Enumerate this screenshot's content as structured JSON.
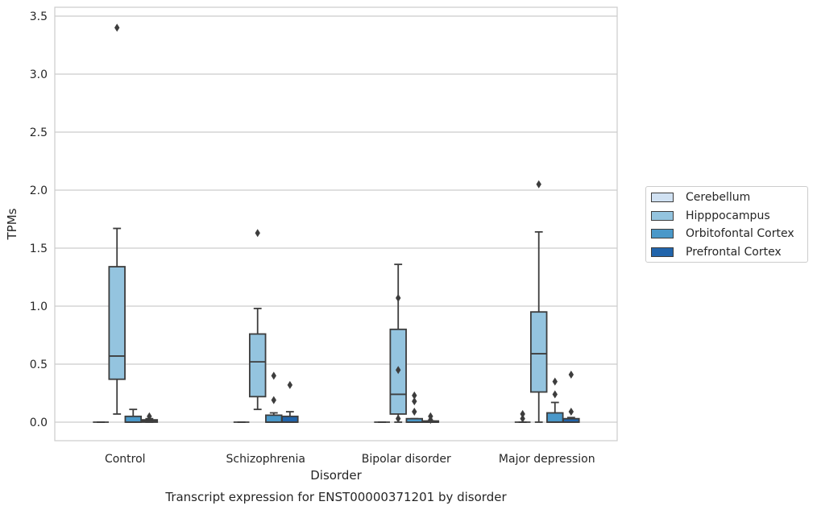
{
  "chart_data": {
    "type": "box",
    "title": "Transcript expression for ENST00000371201 by disorder",
    "xlabel": "Disorder",
    "ylabel": "TPMs",
    "ylim": [
      -0.17,
      3.57
    ],
    "yticks": [
      "0.0",
      "0.5",
      "1.0",
      "1.5",
      "2.0",
      "2.5",
      "3.0",
      "3.5"
    ],
    "categories": [
      "Control",
      "Schizophrenia",
      "Bipolar disorder",
      "Major depression"
    ],
    "grid": "horizontal",
    "legend_position": "right",
    "series": [
      {
        "name": "Cerebellum",
        "color": "#d0e1f2",
        "boxes": [
          {
            "q1": 0.0,
            "median": 0.0,
            "q3": 0.0,
            "whislo": 0.0,
            "whishi": 0.0,
            "fliers": []
          },
          {
            "q1": 0.0,
            "median": 0.0,
            "q3": 0.0,
            "whislo": 0.0,
            "whishi": 0.0,
            "fliers": []
          },
          {
            "q1": 0.0,
            "median": 0.0,
            "q3": 0.0,
            "whislo": 0.0,
            "whishi": 0.0,
            "fliers": []
          },
          {
            "q1": 0.0,
            "median": 0.0,
            "q3": 0.0,
            "whislo": 0.0,
            "whishi": 0.0,
            "fliers": [
              0.03,
              0.07
            ]
          }
        ]
      },
      {
        "name": "Hipppocampus",
        "color": "#94c4df",
        "boxes": [
          {
            "q1": 0.37,
            "median": 0.57,
            "q3": 1.34,
            "whislo": 0.07,
            "whishi": 1.67,
            "fliers": [
              3.4
            ]
          },
          {
            "q1": 0.22,
            "median": 0.52,
            "q3": 0.76,
            "whislo": 0.11,
            "whishi": 0.98,
            "fliers": [
              1.63
            ]
          },
          {
            "q1": 0.07,
            "median": 0.24,
            "q3": 0.8,
            "whislo": 0.0,
            "whishi": 1.36,
            "fliers": [
              0.45,
              1.07,
              0.03
            ]
          },
          {
            "q1": 0.26,
            "median": 0.59,
            "q3": 0.95,
            "whislo": 0.0,
            "whishi": 1.64,
            "fliers": [
              2.05
            ]
          }
        ]
      },
      {
        "name": "Orbitofontal Cortex",
        "color": "#4a98c9",
        "boxes": [
          {
            "q1": 0.0,
            "median": 0.0,
            "q3": 0.05,
            "whislo": 0.0,
            "whishi": 0.11,
            "fliers": []
          },
          {
            "q1": 0.0,
            "median": 0.0,
            "q3": 0.06,
            "whislo": 0.0,
            "whishi": 0.08,
            "fliers": [
              0.4,
              0.19
            ]
          },
          {
            "q1": 0.0,
            "median": 0.0,
            "q3": 0.03,
            "whislo": 0.0,
            "whishi": 0.03,
            "fliers": [
              0.23,
              0.18,
              0.09
            ]
          },
          {
            "q1": 0.0,
            "median": 0.0,
            "q3": 0.08,
            "whislo": 0.0,
            "whishi": 0.17,
            "fliers": [
              0.35,
              0.24
            ]
          }
        ]
      },
      {
        "name": "Prefrontal Cortex",
        "color": "#2164ab",
        "boxes": [
          {
            "q1": 0.0,
            "median": 0.01,
            "q3": 0.02,
            "whislo": 0.0,
            "whishi": 0.03,
            "fliers": [
              0.05
            ]
          },
          {
            "q1": 0.0,
            "median": 0.0,
            "q3": 0.05,
            "whislo": 0.0,
            "whishi": 0.09,
            "fliers": [
              0.32
            ]
          },
          {
            "q1": 0.0,
            "median": 0.0,
            "q3": 0.01,
            "whislo": 0.0,
            "whishi": 0.01,
            "fliers": [
              0.05,
              0.02
            ]
          },
          {
            "q1": 0.0,
            "median": 0.0,
            "q3": 0.03,
            "whislo": 0.0,
            "whishi": 0.04,
            "fliers": [
              0.41,
              0.09
            ]
          }
        ]
      }
    ]
  }
}
